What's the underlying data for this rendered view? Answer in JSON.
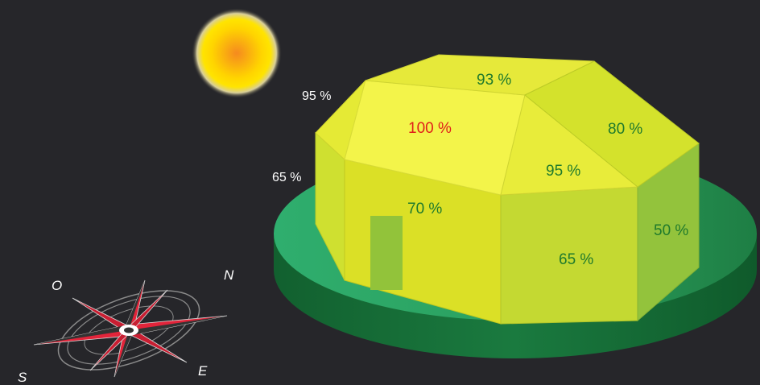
{
  "colors": {
    "background": "#26262a",
    "sun": "#f9a11b",
    "base_top": "#2fa866",
    "base_side": "#166b3a",
    "label_green": "#1f7a2c",
    "label_red": "#e0201a",
    "label_white": "#ffffff"
  },
  "faces": {
    "roof_south": {
      "label": "100 %",
      "value": 100
    },
    "roof_top": {
      "label": "93 %",
      "value": 93
    },
    "roof_east": {
      "label": "80 %",
      "value": 80
    },
    "roof_west_edge": {
      "label": "95 %",
      "value": 95
    },
    "roof_hip": {
      "label": "95 %",
      "value": 95
    },
    "wall_west": {
      "label": "65 %",
      "value": 65
    },
    "wall_south": {
      "label": "70 %",
      "value": 70
    },
    "wall_southeast": {
      "label": "65 %",
      "value": 65
    },
    "wall_east": {
      "label": "50 %",
      "value": 50
    }
  },
  "compass": {
    "north": "N",
    "south": "S",
    "east": "E",
    "west": "O"
  },
  "icons": {
    "sun": "sun-icon",
    "compass": "compass-rose-icon",
    "door": "door-icon"
  }
}
